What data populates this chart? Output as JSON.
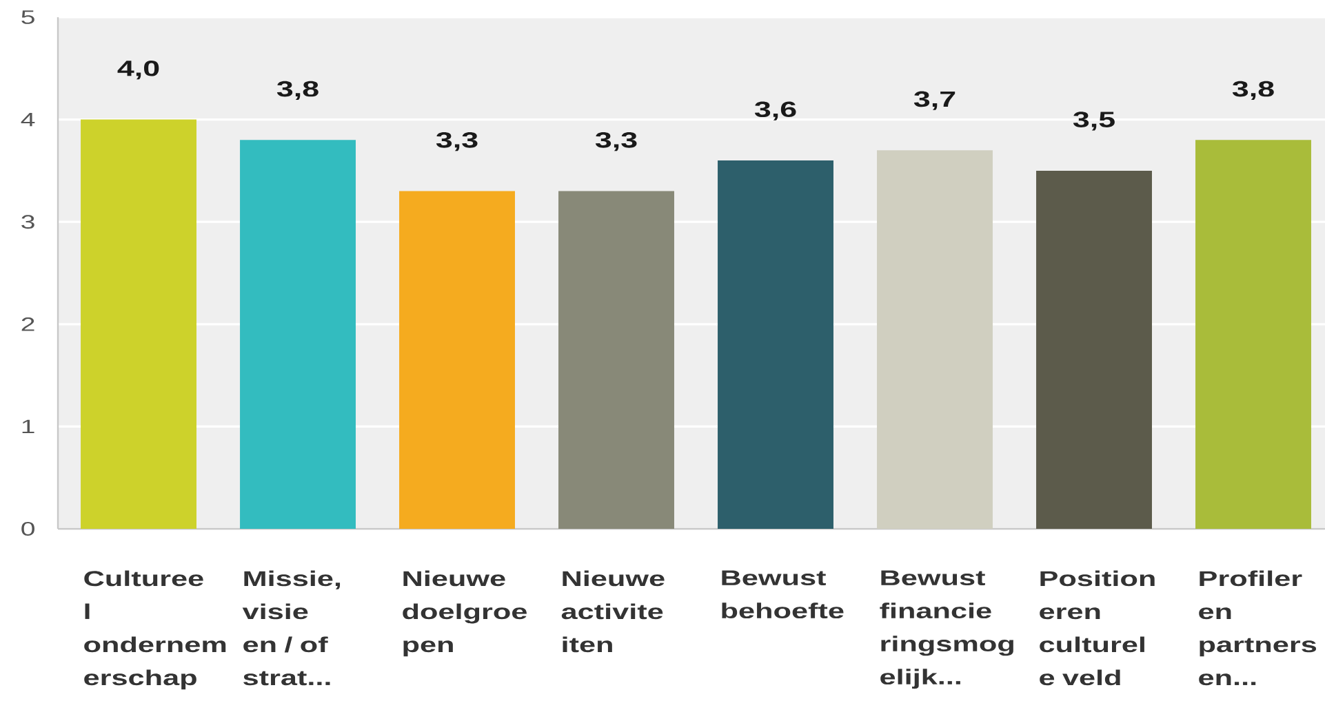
{
  "chart_data": {
    "type": "bar",
    "categories": [
      "Cultureel ondernemerschap",
      "Missie, visie en / of strat...",
      "Nieuwe doelgroepen",
      "Nieuwe activiteiten",
      "Bewust behoefte",
      "Bewust financieringsmogelijk...",
      "Positioneren culturele veld",
      "Profileren partners en..."
    ],
    "values": [
      4.0,
      3.8,
      3.3,
      3.3,
      3.6,
      3.7,
      3.5,
      3.8
    ],
    "value_labels": [
      "4,0",
      "3,8",
      "3,3",
      "3,3",
      "3,6",
      "3,7",
      "3,5",
      "3,8"
    ],
    "colors": [
      "#cdd22b",
      "#33bcbf",
      "#f5ab1f",
      "#888978",
      "#2d5f6b",
      "#d0cfc0",
      "#5c5b4b",
      "#a9bc3a"
    ],
    "ylim": [
      0,
      5
    ],
    "yticks": [
      0,
      1,
      2,
      3,
      4,
      5
    ],
    "grid": "y"
  }
}
